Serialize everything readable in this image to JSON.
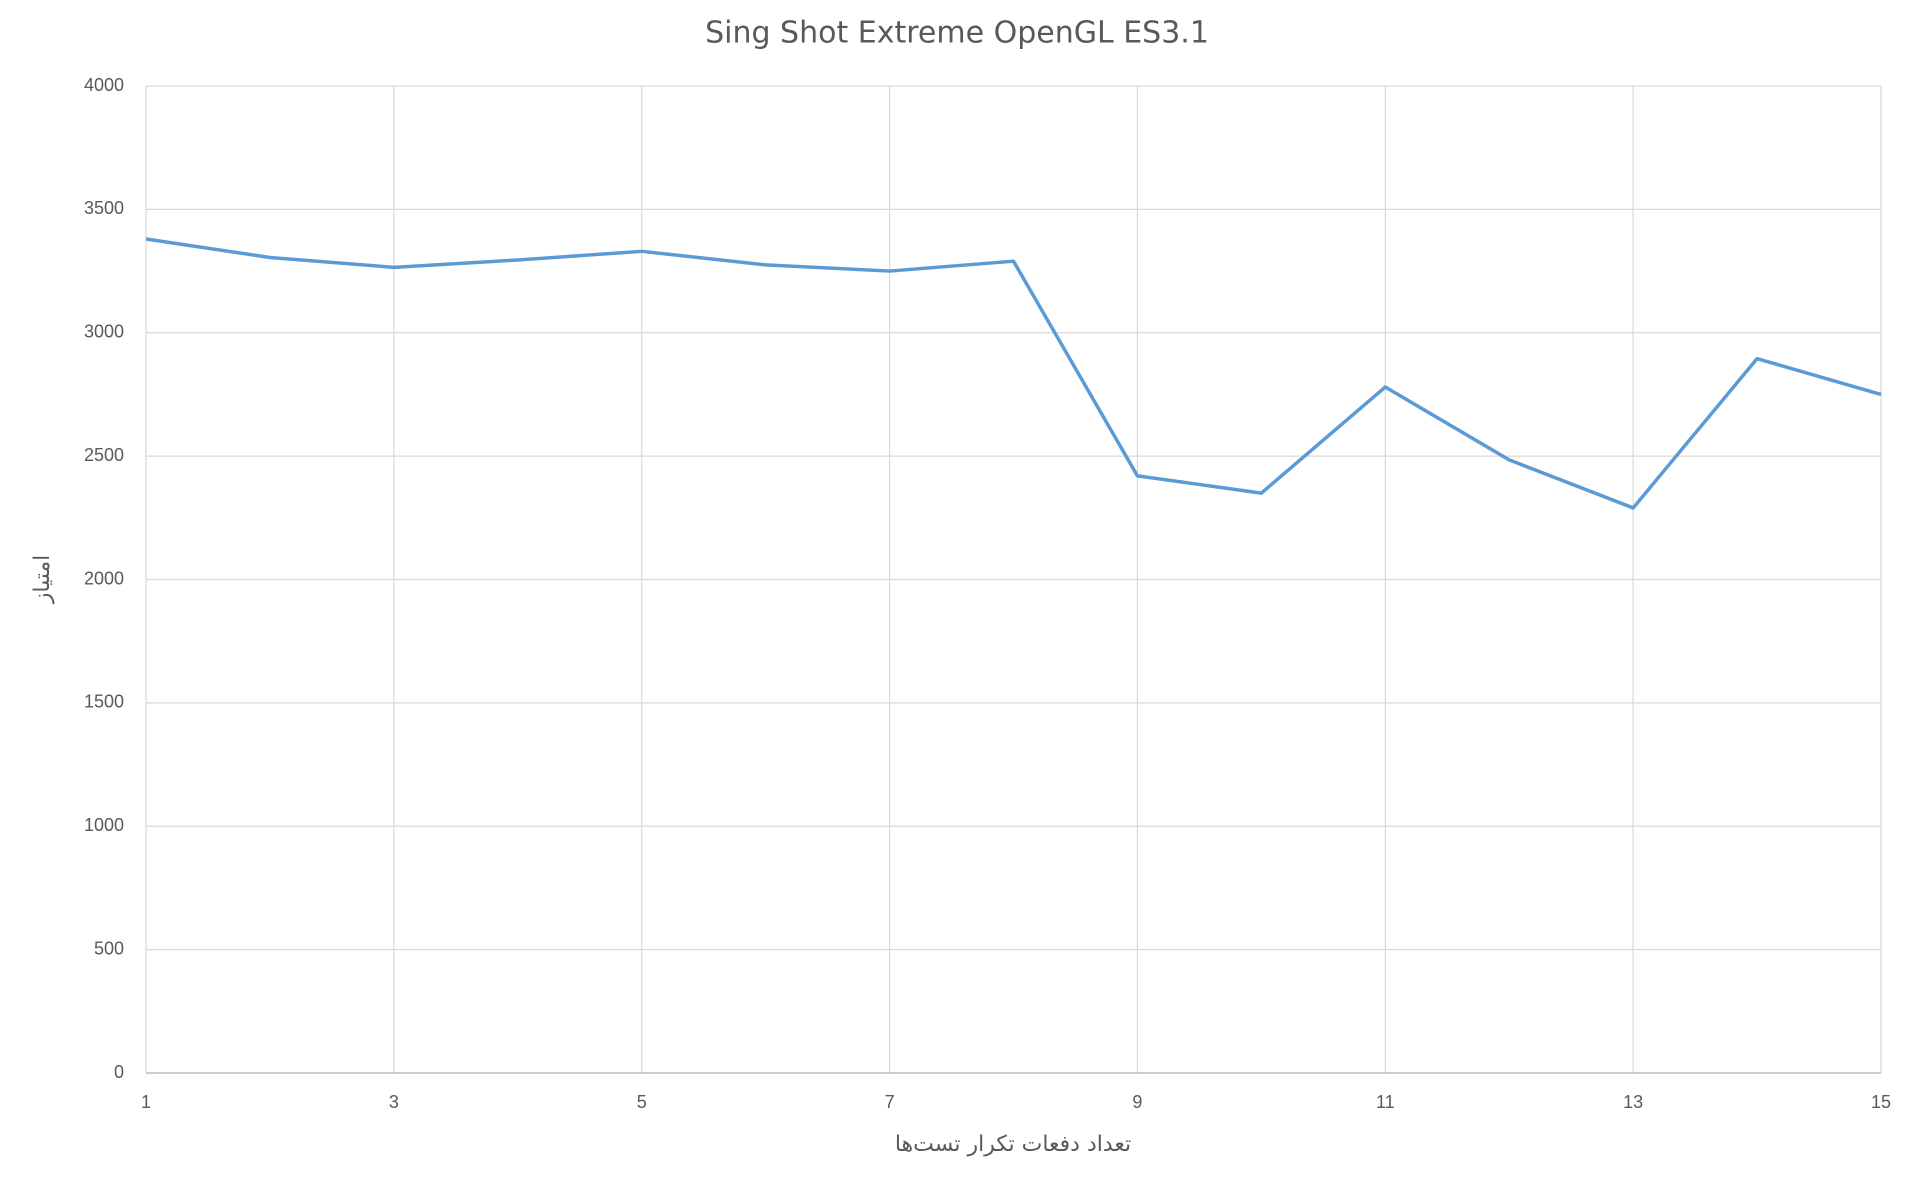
{
  "chart_data": {
    "type": "line",
    "title": "Sing Shot Extreme OpenGL ES3.1",
    "x_label": "تعداد دفعات تکرار تست‌ها",
    "y_label": "امتیاز",
    "x": [
      1,
      2,
      3,
      4,
      5,
      6,
      7,
      8,
      9,
      10,
      11,
      12,
      13,
      14,
      15
    ],
    "series": [
      {
        "color": "#5b9bd5",
        "values": [
          3380,
          3305,
          3265,
          3295,
          3330,
          3275,
          3250,
          3290,
          2420,
          2350,
          2780,
          2485,
          2290,
          2895,
          2750
        ]
      }
    ],
    "xlim": [
      1,
      15
    ],
    "xticks": [
      1,
      3,
      5,
      7,
      9,
      11,
      13,
      15
    ],
    "ylim": [
      0,
      4000
    ],
    "yticks": [
      0,
      500,
      1000,
      1500,
      2000,
      2500,
      3000,
      3500,
      4000
    ],
    "grid": true
  }
}
